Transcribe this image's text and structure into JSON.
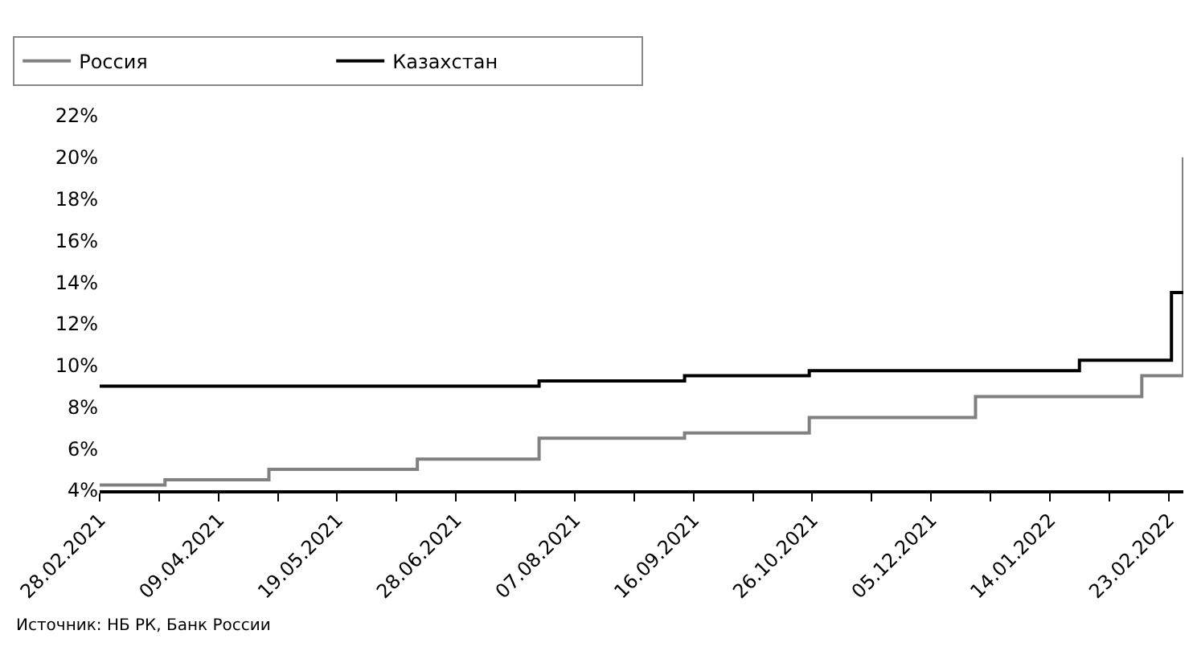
{
  "chart_data": {
    "type": "step",
    "x": [
      "2021-02-28",
      "2021-03-22",
      "2021-04-26",
      "2021-06-15",
      "2021-07-26",
      "2021-09-13",
      "2021-10-25",
      "2021-12-20",
      "2022-01-24",
      "2022-02-14",
      "2022-02-24",
      "2022-02-28"
    ],
    "series": [
      {
        "name": "Россия",
        "color": "#808080",
        "values": [
          4.25,
          4.5,
          5.0,
          5.5,
          6.5,
          6.75,
          7.5,
          8.5,
          8.5,
          9.5,
          9.5,
          20
        ]
      },
      {
        "name": "Казахстан",
        "color": "#000000",
        "values": [
          9.0,
          9.0,
          9.0,
          9.0,
          9.25,
          9.5,
          9.75,
          9.75,
          10.25,
          10.25,
          13.5,
          13.5
        ]
      }
    ],
    "xlim": [
      "2021-02-28",
      "2022-02-28"
    ],
    "xticks": [
      {
        "value": "2021-02-28",
        "label": "28.02.2021"
      },
      {
        "value": "2021-03-20",
        "label": null
      },
      {
        "value": "2021-04-09",
        "label": "09.04.2021"
      },
      {
        "value": "2021-04-29",
        "label": null
      },
      {
        "value": "2021-05-19",
        "label": "19.05.2021"
      },
      {
        "value": "2021-06-08",
        "label": null
      },
      {
        "value": "2021-06-28",
        "label": "28.06.2021"
      },
      {
        "value": "2021-07-18",
        "label": null
      },
      {
        "value": "2021-08-07",
        "label": "07.08.2021"
      },
      {
        "value": "2021-08-27",
        "label": null
      },
      {
        "value": "2021-09-16",
        "label": "16.09.2021"
      },
      {
        "value": "2021-10-06",
        "label": null
      },
      {
        "value": "2021-10-26",
        "label": "26.10.2021"
      },
      {
        "value": "2021-11-15",
        "label": null
      },
      {
        "value": "2021-12-05",
        "label": "05.12.2021"
      },
      {
        "value": "2021-12-25",
        "label": null
      },
      {
        "value": "2022-01-14",
        "label": "14.01.2022"
      },
      {
        "value": "2022-02-03",
        "label": null
      },
      {
        "value": "2022-02-23",
        "label": "23.02.2022"
      }
    ],
    "ylim": [
      4,
      22
    ],
    "yticks": [
      {
        "value": 4,
        "label": "4%"
      },
      {
        "value": 6,
        "label": "6%"
      },
      {
        "value": 8,
        "label": "8%"
      },
      {
        "value": 10,
        "label": "10%"
      },
      {
        "value": 12,
        "label": "12%"
      },
      {
        "value": 14,
        "label": "14%"
      },
      {
        "value": 16,
        "label": "16%"
      },
      {
        "value": 18,
        "label": "18%"
      },
      {
        "value": 20,
        "label": "20%"
      },
      {
        "value": 22,
        "label": "22%"
      }
    ],
    "legend": "top left",
    "line_style": "solid",
    "annotations": [
      "Источник: НБ РК, Банк России"
    ]
  }
}
